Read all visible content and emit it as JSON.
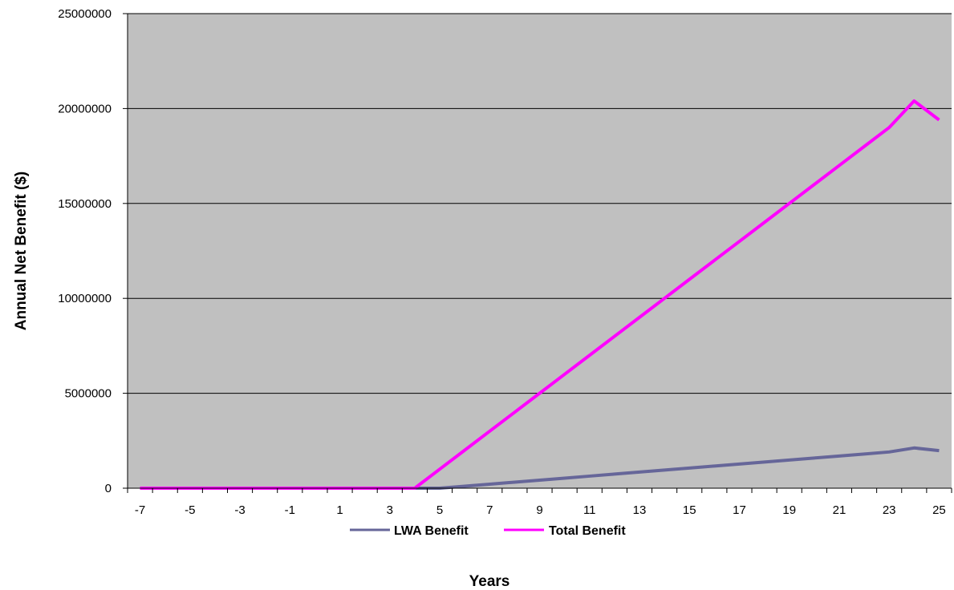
{
  "chart_data": {
    "type": "line",
    "title": "",
    "xlabel": "Years",
    "ylabel": "Annual Net Benefit ($)",
    "x": [
      -7,
      -6,
      -5,
      -4,
      -3,
      -2,
      -1,
      0,
      1,
      2,
      3,
      4,
      5,
      6,
      7,
      8,
      9,
      10,
      11,
      12,
      13,
      14,
      15,
      16,
      17,
      18,
      19,
      20,
      21,
      22,
      23,
      24,
      25
    ],
    "xticks": [
      "-7",
      "-5",
      "-3",
      "-1",
      "1",
      "3",
      "5",
      "7",
      "9",
      "11",
      "13",
      "15",
      "17",
      "19",
      "21",
      "23",
      "25"
    ],
    "ylim": [
      0,
      25000000
    ],
    "yticks": [
      "0",
      "5000000",
      "10000000",
      "15000000",
      "20000000",
      "25000000"
    ],
    "grid": "horizontal",
    "background": "#c0c0c0",
    "legend_position": "bottom",
    "series": [
      {
        "name": "LWA Benefit",
        "color": "#666699",
        "values": [
          0,
          0,
          0,
          0,
          0,
          0,
          0,
          0,
          0,
          0,
          0,
          0,
          0,
          106000,
          212000,
          318000,
          424000,
          530000,
          636000,
          742000,
          848000,
          954000,
          1060000,
          1166000,
          1272000,
          1378000,
          1484000,
          1590000,
          1696000,
          1802000,
          1908000,
          2120000,
          1980000
        ]
      },
      {
        "name": "Total Benefit",
        "color": "#ff00ff",
        "values": [
          0,
          0,
          0,
          0,
          0,
          0,
          0,
          0,
          0,
          0,
          0,
          0,
          1000000,
          2000000,
          3000000,
          4000000,
          5000000,
          6000000,
          7000000,
          8000000,
          9000000,
          10000000,
          11000000,
          12000000,
          13000000,
          14000000,
          15000000,
          16000000,
          17000000,
          18000000,
          19000000,
          20400000,
          19400000
        ]
      }
    ]
  }
}
